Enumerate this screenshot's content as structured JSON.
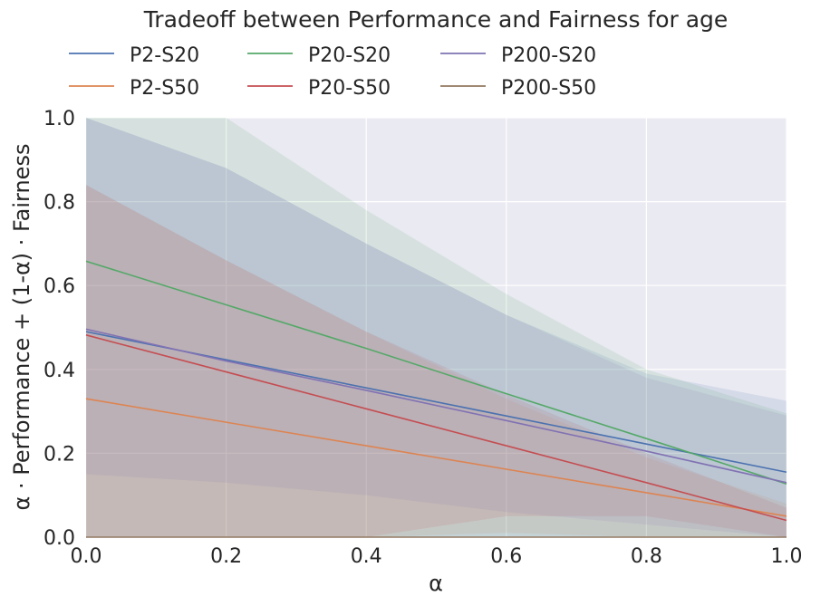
{
  "chart_data": {
    "type": "line",
    "title": "Tradeoff between Performance and Fairness for age",
    "xlabel": "α",
    "ylabel": "α · Performance + (1-α) · Fairness",
    "xlim": [
      0.0,
      1.0
    ],
    "ylim": [
      0.0,
      1.0
    ],
    "x_ticks": [
      "0.0",
      "0.2",
      "0.4",
      "0.6",
      "0.8",
      "1.0"
    ],
    "y_ticks": [
      "0.0",
      "0.2",
      "0.4",
      "0.6",
      "0.8",
      "1.0"
    ],
    "grid": true,
    "legend_position": "top",
    "x": [
      0.0,
      0.2,
      0.4,
      0.6,
      0.8,
      1.0
    ],
    "series": [
      {
        "name": "P2-S20",
        "color": "#4c72b0",
        "values": [
          0.49,
          0.423,
          0.356,
          0.289,
          0.222,
          0.155
        ],
        "band_lower": [
          0.0,
          0.0,
          0.0,
          0.0,
          0.0,
          0.0
        ],
        "band_upper": [
          1.0,
          0.88,
          0.7,
          0.53,
          0.39,
          0.325
        ]
      },
      {
        "name": "P2-S50",
        "color": "#dd8452",
        "values": [
          0.33,
          0.274,
          0.218,
          0.162,
          0.106,
          0.05
        ],
        "band_lower": [
          0.0,
          0.0,
          0.0,
          0.01,
          0.0,
          0.0
        ],
        "band_upper": [
          0.84,
          0.66,
          0.49,
          0.33,
          0.19,
          0.08
        ]
      },
      {
        "name": "P20-S20",
        "color": "#55a868",
        "values": [
          0.658,
          0.554,
          0.45,
          0.342,
          0.235,
          0.127
        ],
        "band_lower": [
          0.0,
          0.0,
          0.0,
          0.0,
          0.0,
          0.0
        ],
        "band_upper": [
          1.0,
          1.0,
          0.78,
          0.58,
          0.4,
          0.295
        ]
      },
      {
        "name": "P20-S50",
        "color": "#c44e52",
        "values": [
          0.482,
          0.394,
          0.306,
          0.218,
          0.13,
          0.04
        ],
        "band_lower": [
          0.0,
          0.0,
          0.0,
          0.05,
          0.05,
          0.0
        ],
        "band_upper": [
          0.84,
          0.66,
          0.49,
          0.34,
          0.2,
          0.07
        ]
      },
      {
        "name": "P200-S20",
        "color": "#8172b3",
        "values": [
          0.496,
          0.42,
          0.35,
          0.278,
          0.205,
          0.13
        ],
        "band_lower": [
          0.15,
          0.13,
          0.1,
          0.06,
          0.03,
          0.0
        ],
        "band_upper": [
          1.0,
          0.88,
          0.7,
          0.53,
          0.38,
          0.29
        ]
      },
      {
        "name": "P200-S50",
        "color": "#937860",
        "values": [
          0.0,
          0.0,
          0.0,
          0.0,
          0.0,
          0.0
        ],
        "band_lower": [
          0.0,
          0.0,
          0.0,
          0.0,
          0.0,
          0.0
        ],
        "band_upper": [
          0.0,
          0.0,
          0.0,
          0.0,
          0.0,
          0.0
        ]
      }
    ],
    "style": {
      "background": "#eaeaf2",
      "grid_color": "#ffffff",
      "text_color": "#262626"
    }
  }
}
